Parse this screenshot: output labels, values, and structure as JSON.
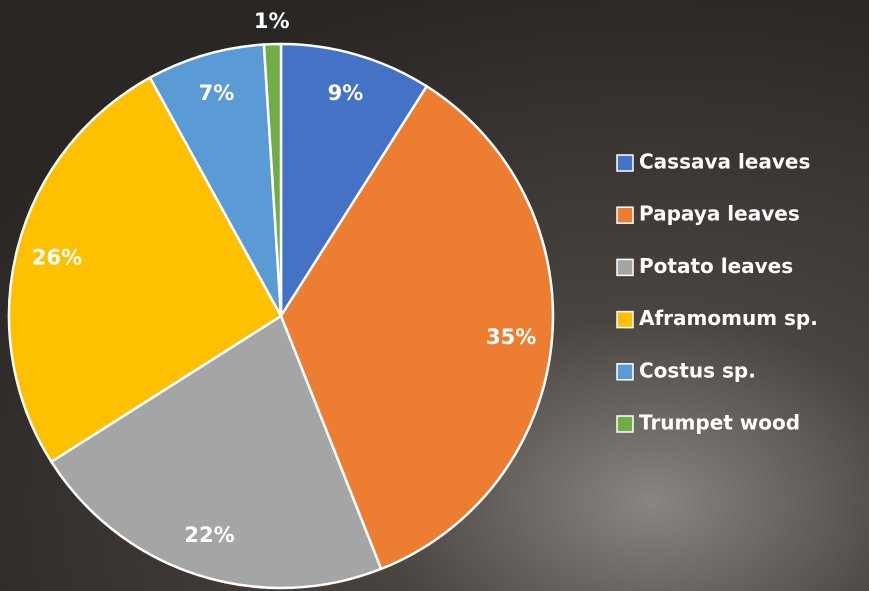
{
  "chart_data": {
    "type": "pie",
    "categories": [
      "Cassava leaves",
      "Papaya leaves",
      "Potato leaves",
      "Aframomum sp.",
      "Costus sp.",
      "Trumpet wood"
    ],
    "values": [
      9,
      35,
      22,
      26,
      7,
      1
    ],
    "value_labels": [
      "9%",
      "35%",
      "22%",
      "26%",
      "7%",
      "1%"
    ],
    "colors": [
      "#4472c4",
      "#ed7d31",
      "#a5a5a5",
      "#ffc000",
      "#5b9bd5",
      "#70ad47"
    ],
    "legend": "right"
  }
}
